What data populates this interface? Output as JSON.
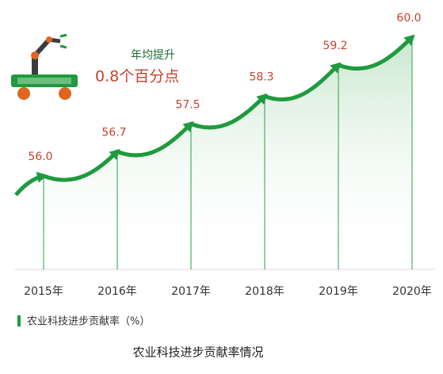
{
  "chart_data": {
    "type": "area",
    "title": "农业科技进步贡献率情况",
    "y_label": "农业科技进步贡献率（%）",
    "annotations": [
      "年均提升",
      "0.8个百分点"
    ],
    "categories": [
      "2015年",
      "2016年",
      "2017年",
      "2018年",
      "2019年",
      "2020年"
    ],
    "values": [
      56.0,
      56.7,
      57.5,
      58.3,
      59.2,
      60.0
    ],
    "value_labels": [
      "56.0",
      "56.7",
      "57.5",
      "58.3",
      "59.2",
      "60.0"
    ],
    "color": "#1f9a3e",
    "label_color": "#c8412c"
  }
}
